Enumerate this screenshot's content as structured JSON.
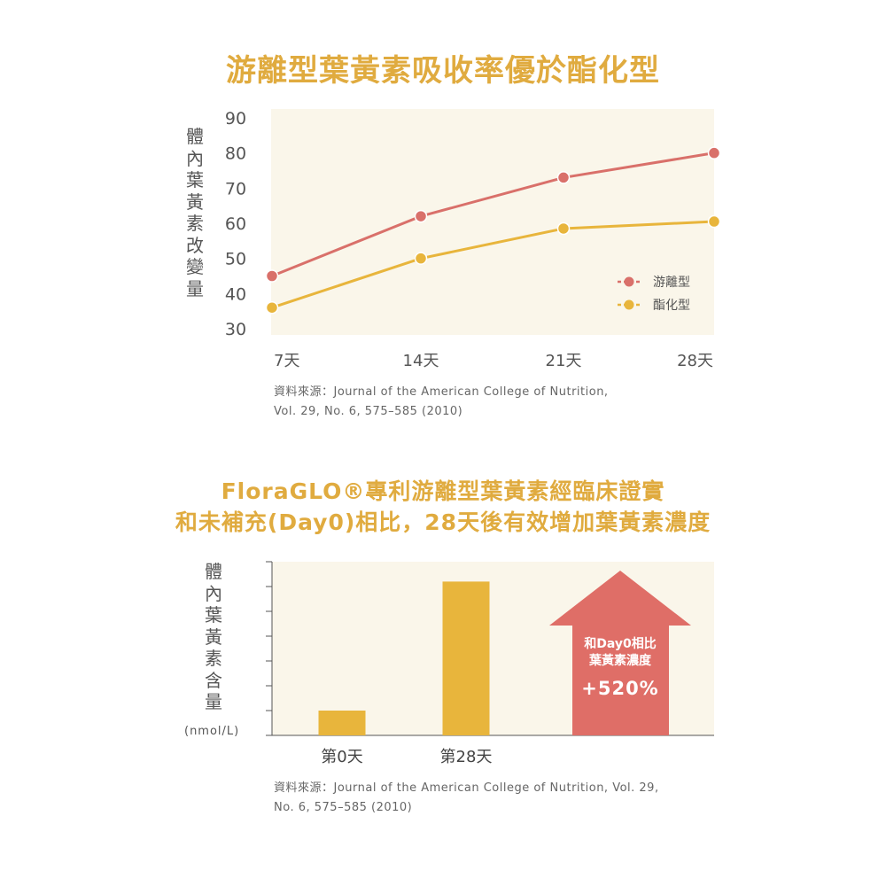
{
  "title1": "游離型葉黃素吸收率優於酯化型",
  "chart1_ylabel_chars": [
    "體",
    "內",
    "葉",
    "黃",
    "素",
    "改",
    "變",
    "量"
  ],
  "chart1_source": [
    "資料來源：Journal of the American College of Nutrition,",
    "Vol. 29, No. 6, 575–585 (2010)"
  ],
  "title2": [
    "FloraGLO®專利游離型葉黃素經臨床證實",
    "和未補充(Day0)相比，28天後有效增加葉黃素濃度"
  ],
  "chart2_ylabel_chars": [
    "體",
    "內",
    "葉",
    "黃",
    "素",
    "含",
    "量"
  ],
  "chart2_unit": "(nmol/L)",
  "chart2_arrow": {
    "line1": "和Day0相比",
    "line2": "葉黃素濃度",
    "value": "+520%"
  },
  "chart2_source": [
    "資料來源：Journal of the American College of Nutrition, Vol. 29,",
    "No. 6, 575–585 (2010)"
  ],
  "colors": {
    "accent": "#e0ab3f",
    "free": "#d9706a",
    "ester": "#e8b53c",
    "panel": "#faf6ea",
    "arrow": "#df6e67"
  },
  "chart_data": [
    {
      "type": "line",
      "title": "游離型葉黃素吸收率優於酯化型",
      "ylabel": "體內葉黃素改變量",
      "xlabel": "",
      "categories": [
        "7天",
        "14天",
        "21天",
        "28天"
      ],
      "yticks": [
        30,
        40,
        50,
        60,
        70,
        80,
        90
      ],
      "ylim": [
        30,
        90
      ],
      "series": [
        {
          "name": "游離型",
          "values": [
            45,
            62,
            73,
            80
          ],
          "color": "#d9706a"
        },
        {
          "name": "酯化型",
          "values": [
            36,
            50,
            58.5,
            60.5
          ],
          "color": "#e8b53c"
        }
      ],
      "legend": "right",
      "grid": false
    },
    {
      "type": "bar",
      "title": "FloraGLO®專利游離型葉黃素經臨床證實 和未補充(Day0)相比，28天後有效增加葉黃素濃度",
      "ylabel": "體內葉黃素含量 (nmol/L)",
      "xlabel": "",
      "categories": [
        "第0天",
        "第28天"
      ],
      "values": [
        1,
        6.2
      ],
      "ylim": [
        0,
        7
      ],
      "annotation": "和Day0相比 葉黃素濃度 +520%",
      "grid": false
    }
  ]
}
